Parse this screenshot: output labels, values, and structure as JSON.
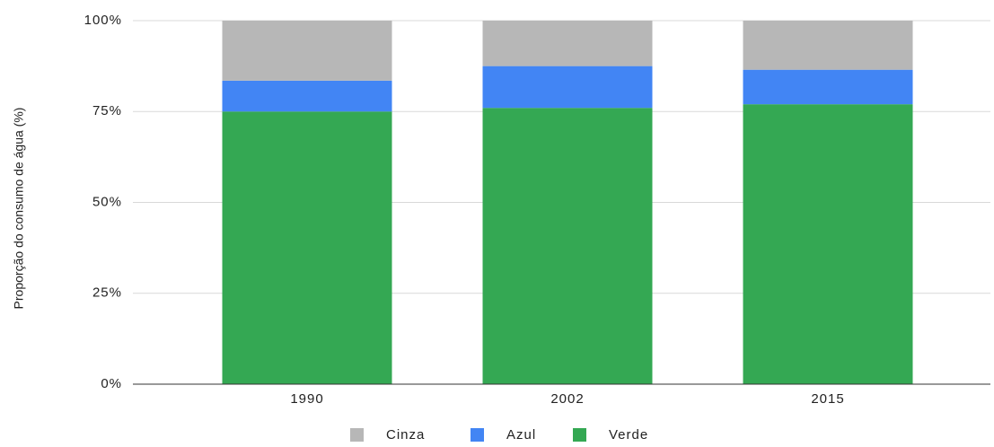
{
  "chart_data": {
    "type": "stacked_bar",
    "y_label": "Proporção do consumo de água (%)",
    "categories": [
      "1990",
      "2002",
      "2015"
    ],
    "series": [
      {
        "name": "Cinza",
        "color": "#b7b7b7",
        "values": [
          16.5,
          12.5,
          13.5
        ]
      },
      {
        "name": "Azul",
        "color": "#4285f4",
        "values": [
          8.5,
          11.5,
          9.5
        ]
      },
      {
        "name": "Verde",
        "color": "#34a853",
        "values": [
          75,
          76,
          77
        ]
      }
    ],
    "ylim": [
      0,
      100
    ],
    "yticks": [
      {
        "value": 0,
        "label": "0%"
      },
      {
        "value": 25,
        "label": "25%"
      },
      {
        "value": 50,
        "label": "50%"
      },
      {
        "value": 75,
        "label": "75%"
      },
      {
        "value": 100,
        "label": "100%"
      }
    ],
    "grid": true,
    "legend": "bottom"
  }
}
